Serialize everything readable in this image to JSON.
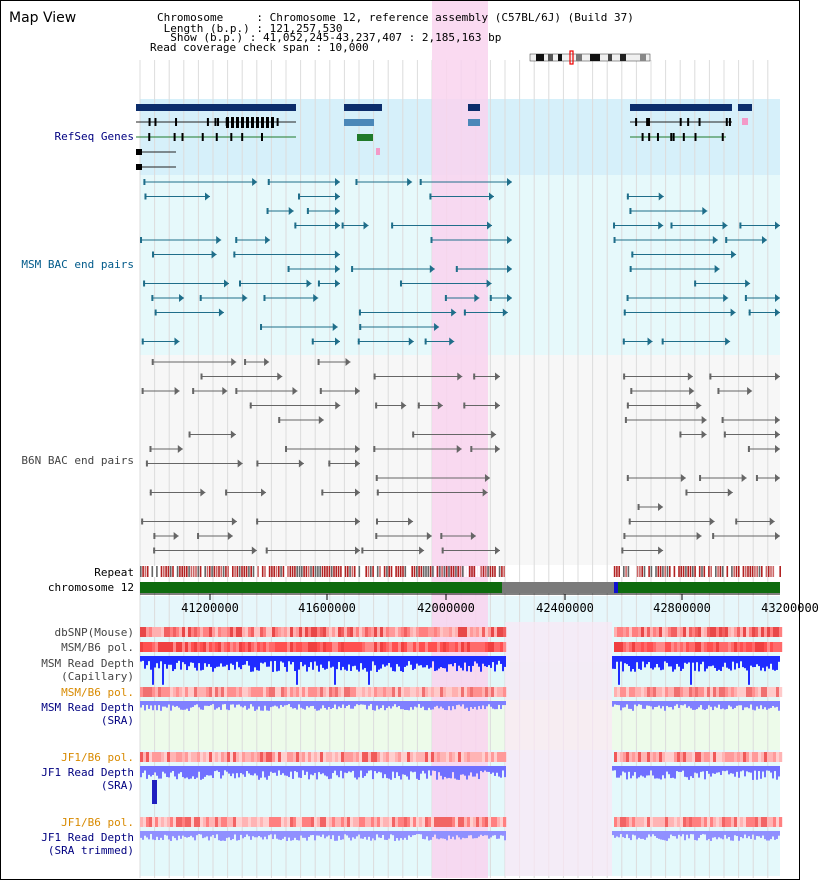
{
  "header": {
    "title": "Map View",
    "chromosome_key": "Chromosome",
    "chromosome_val": "Chromosome 12, reference assembly (C57BL/6J) (Build 37)",
    "length_key": "Length (b.p.)",
    "length_val": "121,257,530",
    "show_key": "Show (b.p.)",
    "show_val": "41,052,245-43,237,407 : 2,185,163 bp",
    "coverage_key": "Read coverage check span",
    "coverage_val": "10,000"
  },
  "tracks": {
    "refseq": "RefSeq Genes",
    "msm_bac": "MSM BAC end pairs",
    "b6n_bac": "B6N BAC end pairs",
    "repeat": "Repeat",
    "chromosome": "chromosome 12",
    "dbsnp": "dbSNP(Mouse)",
    "msm_b6_pol_1": "MSM/B6 pol.",
    "msm_depth_cap_1": "MSM Read Depth",
    "msm_depth_cap_2": "(Capillary)",
    "msm_b6_pol_2": "MSM/B6 pol.",
    "msm_depth_sra_1": "MSM Read Depth",
    "msm_depth_sra_2": "(SRA)",
    "jf1_pol_1": "JF1/B6 pol.",
    "jf1_depth_sra_1": "JF1 Read Depth",
    "jf1_depth_sra_2": "(SRA)",
    "jf1_pol_2": "JF1/B6 pol.",
    "jf1_depth_trim_1": "JF1 Read Depth",
    "jf1_depth_trim_2": "(SRA trimmed)"
  },
  "axis": {
    "ticks": [
      "41200000",
      "41600000",
      "42000000",
      "42400000",
      "42800000",
      "43200000"
    ]
  },
  "colors": {
    "refseq_bg": "#d6f0fa",
    "msm_bg": "#e6f9fb",
    "b6n_bg": "#f7f7f7",
    "highlight": "#f9d3ee",
    "gene_navy": "#0c2d6b",
    "gene_blue": "#4a87b8",
    "gene_green": "#1f7a2a",
    "bac_teal": "#1f6e8a",
    "bac_gray": "#666666",
    "depth_blue": "#1f2cff",
    "depth_light": "#7a7aff",
    "pol_red": "#ee4444",
    "chrom_green": "#0e6b0e",
    "label_navy": "#000080",
    "label_teal": "#005a8a",
    "label_orange": "#d88a00"
  },
  "icons": {
    "ideogram": "chromosome-ideogram-icon"
  }
}
